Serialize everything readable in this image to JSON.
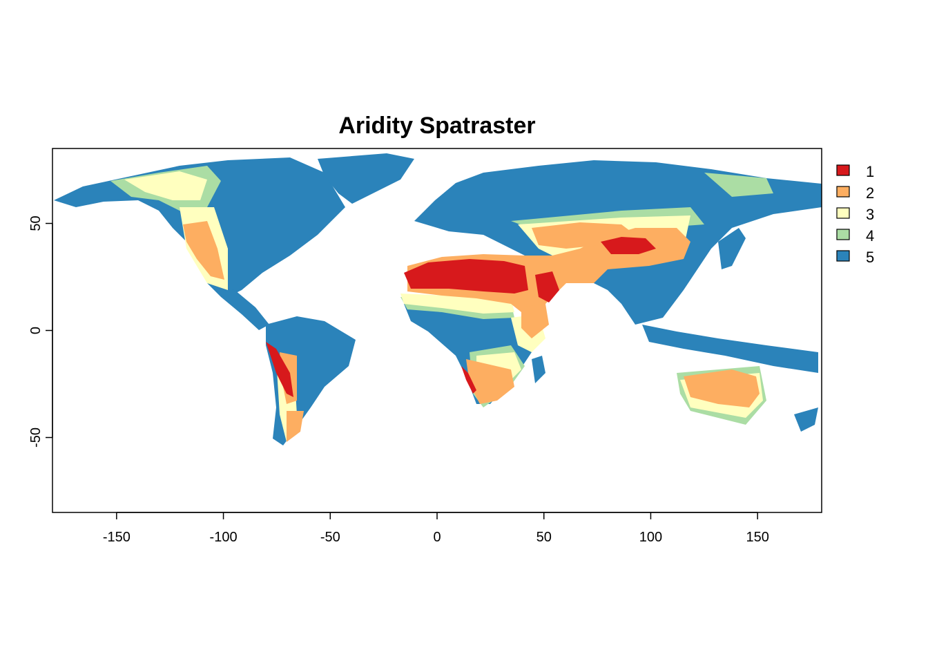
{
  "title": "Aridity Spatraster",
  "map": {
    "x_range": [
      -180,
      180
    ],
    "y_range": [
      -85,
      85
    ],
    "x_ticks": [
      -150,
      -100,
      -50,
      0,
      50,
      100,
      150
    ],
    "y_ticks": [
      -50,
      0,
      50
    ],
    "classes": [
      {
        "label": "1",
        "color": "#d7191c"
      },
      {
        "label": "2",
        "color": "#fdae61"
      },
      {
        "label": "3",
        "color": "#ffffbf"
      },
      {
        "label": "4",
        "color": "#abdda4"
      },
      {
        "label": "5",
        "color": "#2b83ba"
      }
    ],
    "legend_position": "right"
  }
}
